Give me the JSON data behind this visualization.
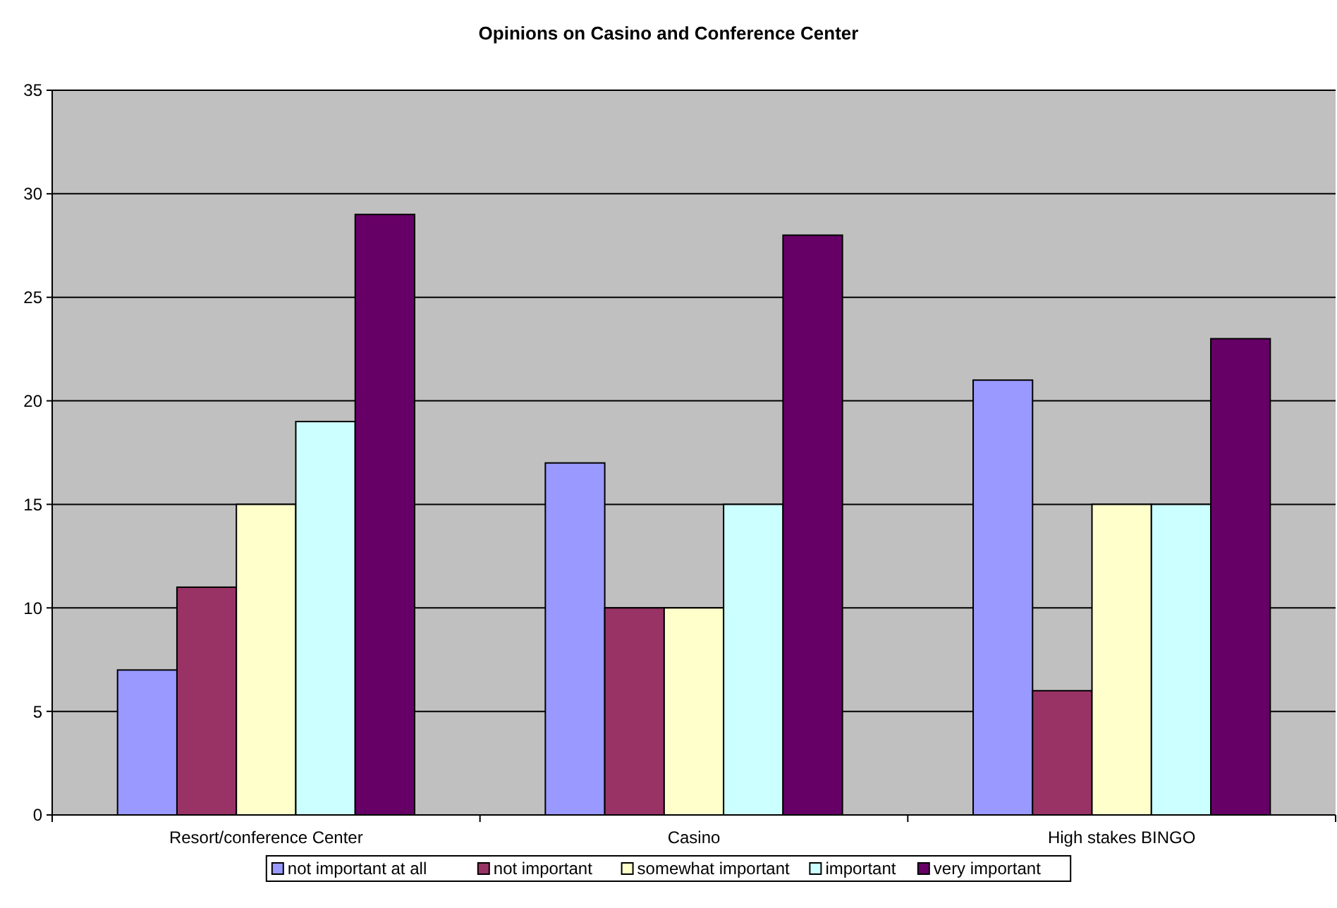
{
  "chart_data": {
    "type": "bar",
    "title": "Opinions on Casino and Conference Center",
    "categories": [
      "Resort/conference Center",
      "Casino",
      "High stakes BINGO"
    ],
    "series": [
      {
        "name": "not important at all",
        "color": "#9999ff",
        "values": [
          7,
          17,
          21
        ]
      },
      {
        "name": "not important",
        "color": "#993366",
        "values": [
          11,
          10,
          6
        ]
      },
      {
        "name": "somewhat important",
        "color": "#ffffcc",
        "values": [
          15,
          10,
          15
        ]
      },
      {
        "name": "important",
        "color": "#ccffff",
        "values": [
          19,
          15,
          15
        ]
      },
      {
        "name": "very important",
        "color": "#660066",
        "values": [
          29,
          28,
          23
        ]
      }
    ],
    "ylim": [
      0,
      35
    ],
    "yticks": [
      0,
      5,
      10,
      15,
      20,
      25,
      30,
      35
    ],
    "grid": "y",
    "legend": "bottom"
  }
}
